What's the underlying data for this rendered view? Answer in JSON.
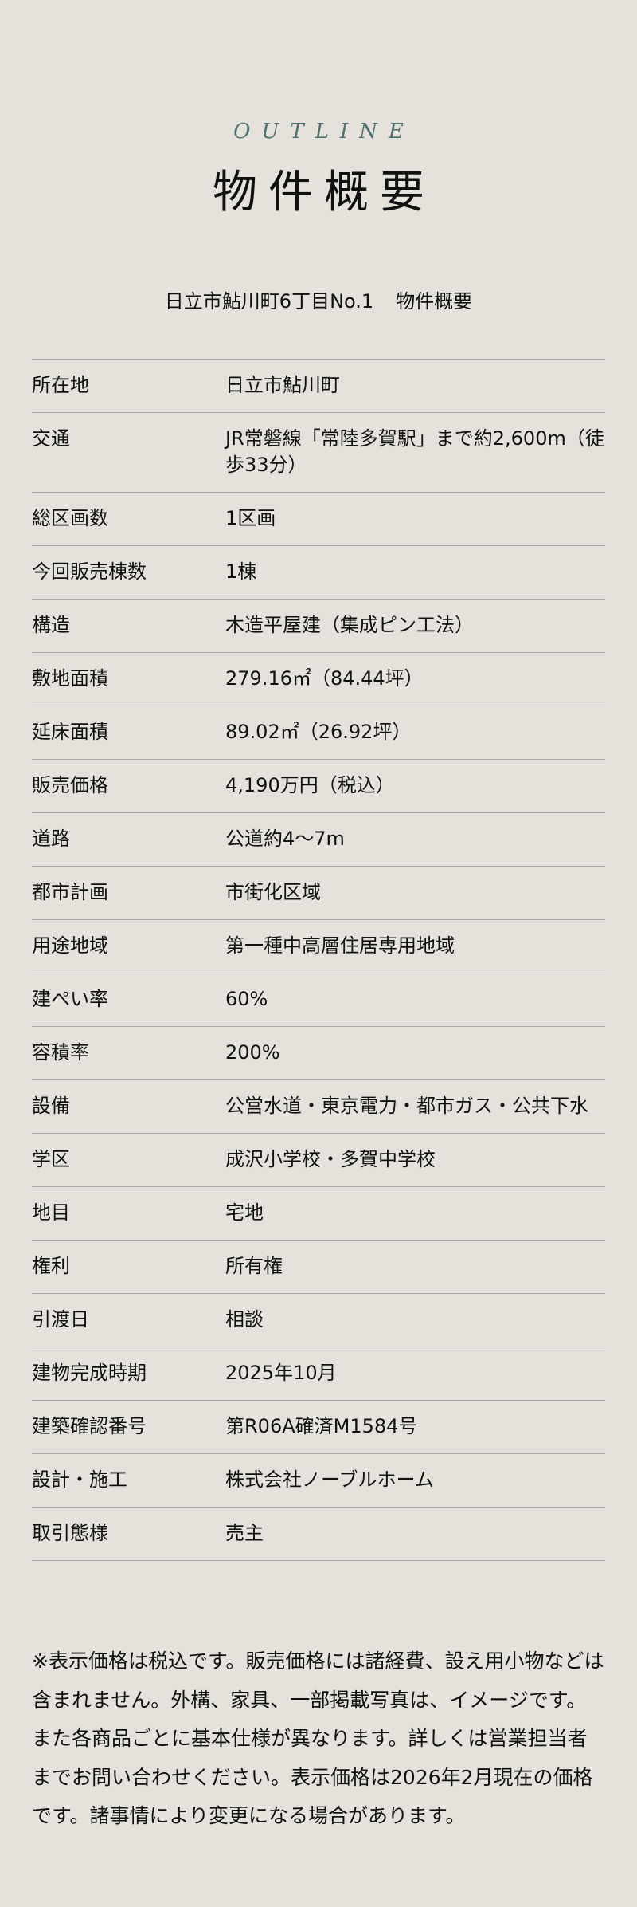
{
  "header": {
    "eyebrow": "OUTLINE",
    "title": "物件概要",
    "subtitle_place": "日立市鮎川町6丁目No.1",
    "subtitle_suffix": "物件概要"
  },
  "colors": {
    "background": "#e4e2da",
    "accent": "#4f7070",
    "divider": "#a9aaa7"
  },
  "rows": [
    {
      "label": "所在地",
      "value": "日立市鮎川町"
    },
    {
      "label": "交通",
      "value": "JR常磐線「常陸多賀駅」まで約2,600m（徒歩33分）"
    },
    {
      "label": "総区画数",
      "value": "1区画"
    },
    {
      "label": "今回販売棟数",
      "value": "1棟"
    },
    {
      "label": "構造",
      "value": "木造平屋建（集成ピン工法）"
    },
    {
      "label": "敷地面積",
      "value": "279.16㎡（84.44坪）"
    },
    {
      "label": "延床面積",
      "value": "89.02㎡（26.92坪）"
    },
    {
      "label": "販売価格",
      "value": "4,190万円（税込）"
    },
    {
      "label": "道路",
      "value": "公道約4〜7m"
    },
    {
      "label": "都市計画",
      "value": "市街化区域"
    },
    {
      "label": "用途地域",
      "value": "第一種中高層住居専用地域"
    },
    {
      "label": "建ぺい率",
      "value": "60%"
    },
    {
      "label": "容積率",
      "value": "200%"
    },
    {
      "label": "設備",
      "value": "公営水道・東京電力・都市ガス・公共下水"
    },
    {
      "label": "学区",
      "value": "成沢小学校・多賀中学校"
    },
    {
      "label": "地目",
      "value": "宅地"
    },
    {
      "label": "権利",
      "value": "所有権"
    },
    {
      "label": "引渡日",
      "value": "相談"
    },
    {
      "label": "建物完成時期",
      "value": "2025年10月"
    },
    {
      "label": "建築確認番号",
      "value": "第R06A確済M1584号"
    },
    {
      "label": "設計・施工",
      "value": "株式会社ノーブルホーム"
    },
    {
      "label": "取引態様",
      "value": "売主"
    }
  ],
  "notes": "※表示価格は税込です。販売価格には諸経費、設え用小物などは含まれません。外構、家具、一部掲載写真は、イメージです。また各商品ごとに基本仕様が異なります。詳しくは営業担当者までお問い合わせください。表示価格は2026年2月現在の価格です。諸事情により変更になる場合があります。"
}
